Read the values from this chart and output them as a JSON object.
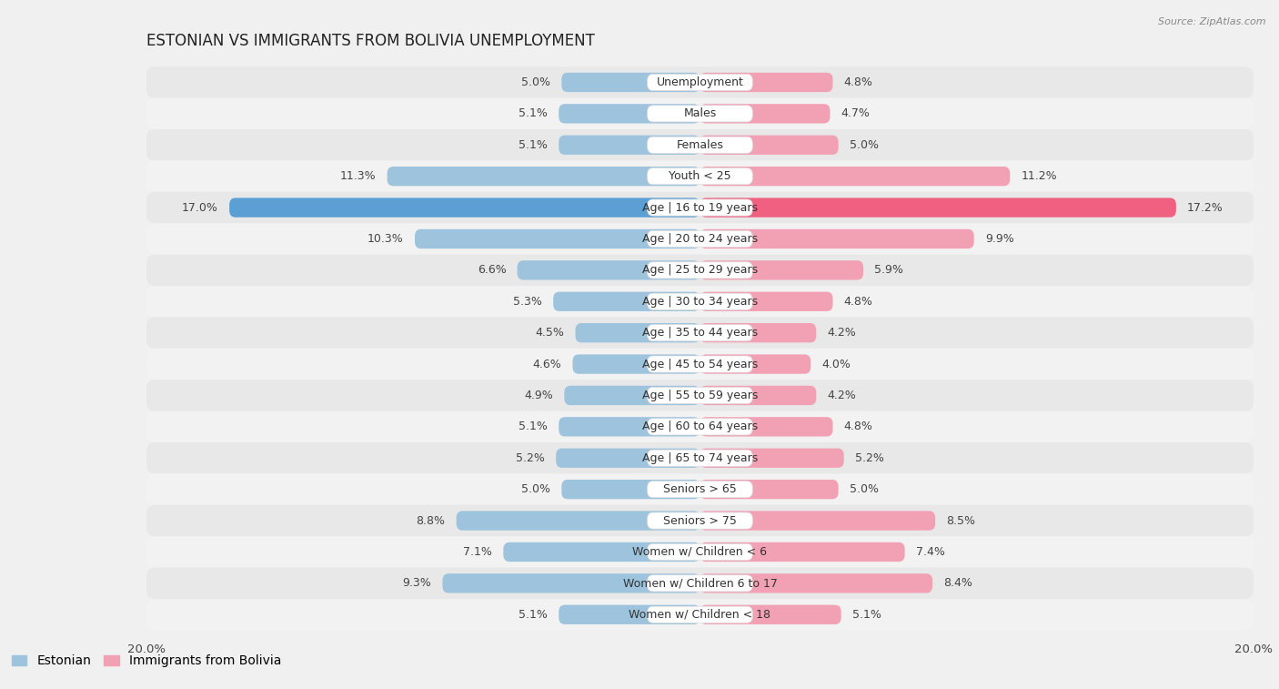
{
  "title": "Estonian vs Immigrants from Bolivia Unemployment",
  "source": "Source: ZipAtlas.com",
  "categories": [
    "Unemployment",
    "Males",
    "Females",
    "Youth < 25",
    "Age | 16 to 19 years",
    "Age | 20 to 24 years",
    "Age | 25 to 29 years",
    "Age | 30 to 34 years",
    "Age | 35 to 44 years",
    "Age | 45 to 54 years",
    "Age | 55 to 59 years",
    "Age | 60 to 64 years",
    "Age | 65 to 74 years",
    "Seniors > 65",
    "Seniors > 75",
    "Women w/ Children < 6",
    "Women w/ Children 6 to 17",
    "Women w/ Children < 18"
  ],
  "estonian": [
    5.0,
    5.1,
    5.1,
    11.3,
    17.0,
    10.3,
    6.6,
    5.3,
    4.5,
    4.6,
    4.9,
    5.1,
    5.2,
    5.0,
    8.8,
    7.1,
    9.3,
    5.1
  ],
  "bolivia": [
    4.8,
    4.7,
    5.0,
    11.2,
    17.2,
    9.9,
    5.9,
    4.8,
    4.2,
    4.0,
    4.2,
    4.8,
    5.2,
    5.0,
    8.5,
    7.4,
    8.4,
    5.1
  ],
  "estonian_color": "#9dc3dd",
  "bolivia_color": "#f2a0b4",
  "highlight_estonian_color": "#5b9fd4",
  "highlight_bolivia_color": "#f06080",
  "row_color_even": "#e8e8e8",
  "row_color_odd": "#f2f2f2",
  "background_color": "#f0f0f0",
  "axis_max": 20.0,
  "label_fontsize": 9,
  "title_fontsize": 12,
  "value_fontsize": 9,
  "legend_label_estonian": "Estonian",
  "legend_label_bolivia": "Immigrants from Bolivia"
}
